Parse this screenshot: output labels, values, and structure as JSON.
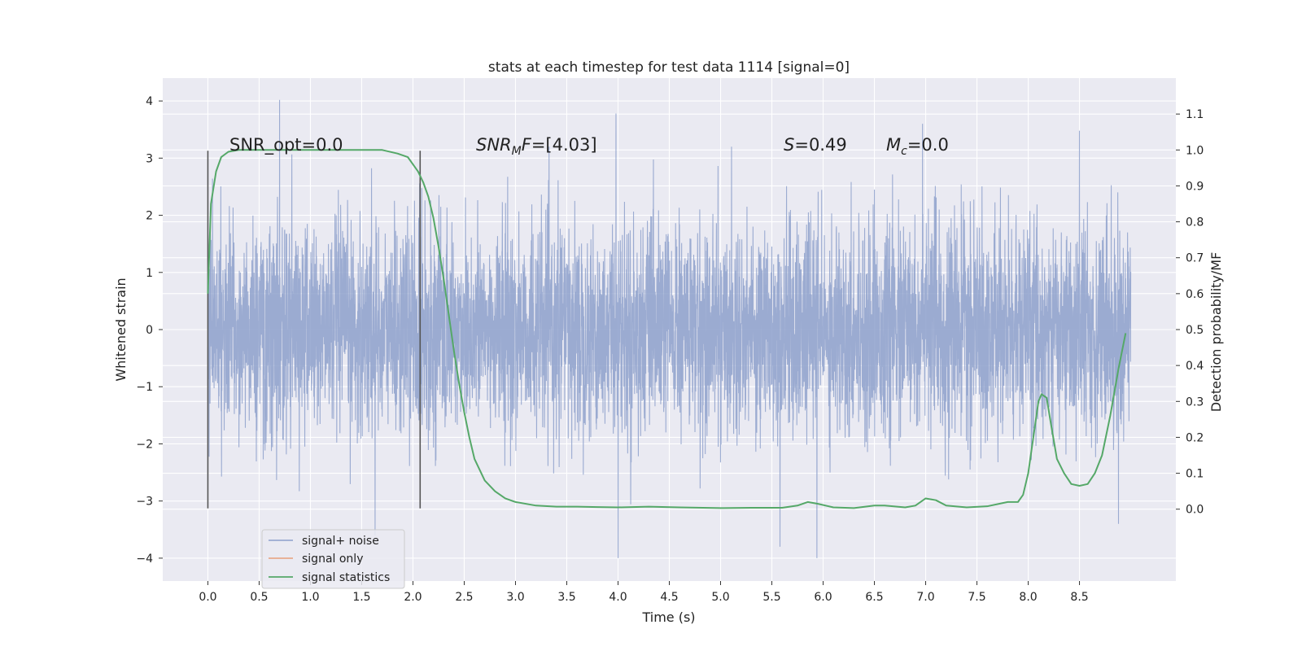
{
  "chart_data": {
    "type": "line",
    "title": "stats at each timestep for test data 1114 [signal=0]",
    "xlabel": "Time (s)",
    "ylabel_left": "Whitened strain",
    "ylabel_right": "Detection probability/MF",
    "xlim": [
      -0.44,
      9.44
    ],
    "ylim_left": [
      -4.4,
      4.4
    ],
    "ylim_right": [
      -0.2,
      1.2
    ],
    "xticks": [
      "0.0",
      "0.5",
      "1.0",
      "1.5",
      "2.0",
      "2.5",
      "3.0",
      "3.5",
      "4.0",
      "4.5",
      "5.0",
      "5.5",
      "6.0",
      "6.5",
      "7.0",
      "7.5",
      "8.0",
      "8.5"
    ],
    "yticks_left": [
      "4",
      "3",
      "2",
      "1",
      "0",
      "−1",
      "−2",
      "−3",
      "−4"
    ],
    "yticks_right": [
      "1.1",
      "1.0",
      "0.9",
      "0.8",
      "0.7",
      "0.6",
      "0.5",
      "0.4",
      "0.3",
      "0.2",
      "0.1",
      "0.0"
    ],
    "grid": true,
    "legend_placement": "lower-left",
    "annotations": {
      "snr_opt": "SNR_opt=0.0",
      "snr_mf_base": "SNR",
      "snr_mf_sub": "M",
      "snr_mf_rest": "F=[4.03]",
      "s_sym": "S",
      "s_val": "=0.49",
      "mc_sym": "M",
      "mc_sub": "c",
      "mc_val": "=0.0"
    },
    "vlines": {
      "x": [
        0.0,
        2.07
      ],
      "ymin": -3.13,
      "ymax": 3.13,
      "color": "#555555"
    },
    "series": [
      {
        "name": "signal+ noise",
        "axis": "left",
        "color": "#8da0cb",
        "t_range": [
          0.0,
          9.0
        ],
        "approx_envelope": [
          -4.0,
          4.02
        ],
        "notable_peaks": [
          [
            0.7,
            4.02
          ],
          [
            3.98,
            3.78
          ],
          [
            6.97,
            3.6
          ],
          [
            8.5,
            3.48
          ],
          [
            1.63,
            -3.6
          ],
          [
            4.0,
            -4.0
          ],
          [
            5.94,
            -4.0
          ],
          [
            5.58,
            -3.8
          ],
          [
            8.88,
            -3.4
          ]
        ]
      },
      {
        "name": "signal only",
        "axis": "left",
        "color": "#e8a07a",
        "x": [],
        "y": []
      },
      {
        "name": "signal statistics",
        "axis": "right",
        "color": "#55a868",
        "x": [
          0.0,
          0.03,
          0.08,
          0.13,
          0.2,
          0.3,
          0.5,
          0.8,
          1.0,
          1.3,
          1.5,
          1.7,
          1.85,
          1.95,
          2.0,
          2.05,
          2.1,
          2.15,
          2.2,
          2.25,
          2.3,
          2.35,
          2.4,
          2.45,
          2.5,
          2.55,
          2.6,
          2.7,
          2.8,
          2.9,
          3.0,
          3.2,
          3.4,
          3.6,
          3.8,
          4.0,
          4.3,
          4.6,
          5.0,
          5.3,
          5.6,
          5.75,
          5.85,
          5.95,
          6.1,
          6.3,
          6.5,
          6.6,
          6.8,
          6.9,
          7.0,
          7.1,
          7.2,
          7.4,
          7.6,
          7.8,
          7.9,
          7.95,
          8.0,
          8.05,
          8.1,
          8.13,
          8.18,
          8.22,
          8.28,
          8.35,
          8.42,
          8.5,
          8.58,
          8.65,
          8.72,
          8.8,
          8.88,
          8.95
        ],
        "y": [
          0.6,
          0.85,
          0.94,
          0.98,
          0.995,
          1.0,
          1.0,
          1.0,
          1.0,
          1.0,
          1.0,
          1.0,
          0.99,
          0.98,
          0.96,
          0.94,
          0.91,
          0.87,
          0.81,
          0.73,
          0.64,
          0.54,
          0.44,
          0.35,
          0.27,
          0.2,
          0.14,
          0.08,
          0.05,
          0.03,
          0.02,
          0.01,
          0.007,
          0.007,
          0.006,
          0.005,
          0.007,
          0.005,
          0.003,
          0.004,
          0.004,
          0.01,
          0.02,
          0.015,
          0.005,
          0.003,
          0.01,
          0.01,
          0.005,
          0.01,
          0.03,
          0.025,
          0.01,
          0.005,
          0.008,
          0.02,
          0.02,
          0.04,
          0.1,
          0.2,
          0.3,
          0.32,
          0.31,
          0.24,
          0.14,
          0.1,
          0.07,
          0.065,
          0.07,
          0.1,
          0.15,
          0.26,
          0.39,
          0.49
        ]
      }
    ]
  }
}
